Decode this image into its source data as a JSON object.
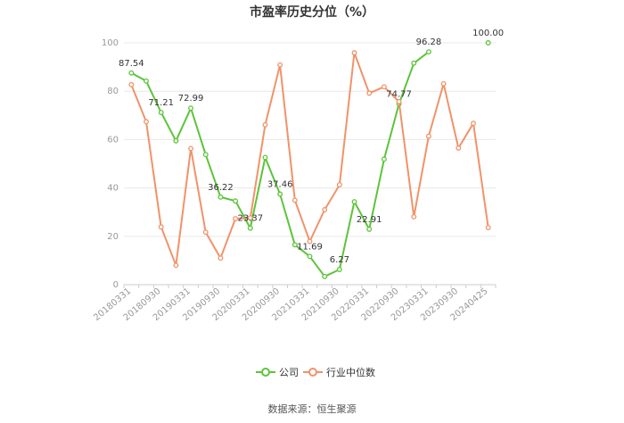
{
  "chart_data": {
    "type": "line",
    "title": "市盈率历史分位（%）",
    "ylim": [
      0,
      100
    ],
    "yticks": [
      0,
      20,
      40,
      60,
      80,
      100
    ],
    "x": [
      "20180331",
      "20180630",
      "20180930",
      "20181231",
      "20190331",
      "20190630",
      "20190930",
      "20191231",
      "20200331",
      "20200630",
      "20200930",
      "20201231",
      "20210331",
      "20210630",
      "20210930",
      "20211231",
      "20220331",
      "20220630",
      "20220930",
      "20221231",
      "20230331",
      "20230630",
      "20230930",
      "20231231",
      "20240425"
    ],
    "x_tick_labels": [
      "20180331",
      "20180930",
      "20190331",
      "20190930",
      "20200331",
      "20200930",
      "20210331",
      "20210930",
      "20220331",
      "20220930",
      "20230331",
      "20230930",
      "20240425"
    ],
    "series": [
      {
        "name": "公司",
        "color": "#5cc43a",
        "values": [
          87.54,
          84.2,
          71.21,
          59.5,
          72.99,
          53.8,
          36.22,
          34.6,
          23.37,
          52.6,
          37.46,
          16.5,
          11.69,
          3.4,
          6.27,
          34.3,
          22.91,
          51.9,
          74.77,
          91.6,
          96.28,
          null,
          null,
          null,
          100.0
        ],
        "labels": [
          {
            "index": 0,
            "text": "87.54"
          },
          {
            "index": 2,
            "text": "71.21"
          },
          {
            "index": 4,
            "text": "72.99"
          },
          {
            "index": 6,
            "text": "36.22"
          },
          {
            "index": 8,
            "text": "23.37"
          },
          {
            "index": 10,
            "text": "37.46"
          },
          {
            "index": 12,
            "text": "11.69"
          },
          {
            "index": 14,
            "text": "6.27"
          },
          {
            "index": 16,
            "text": "22.91"
          },
          {
            "index": 18,
            "text": "74.77"
          },
          {
            "index": 20,
            "text": "96.28"
          },
          {
            "index": 24,
            "text": "100.00"
          }
        ]
      },
      {
        "name": "行业中位数",
        "color": "#f0936a",
        "values": [
          82.7,
          67.4,
          23.9,
          8.0,
          56.3,
          21.7,
          11.0,
          27.3,
          27.6,
          66.1,
          90.9,
          34.9,
          17.9,
          31.0,
          41.3,
          95.9,
          79.2,
          81.8,
          75.7,
          28.1,
          61.4,
          83.1,
          56.5,
          66.7,
          23.6
        ]
      }
    ],
    "legend_position": "bottom",
    "grid": true,
    "source": "数据来源：恒生聚源"
  }
}
